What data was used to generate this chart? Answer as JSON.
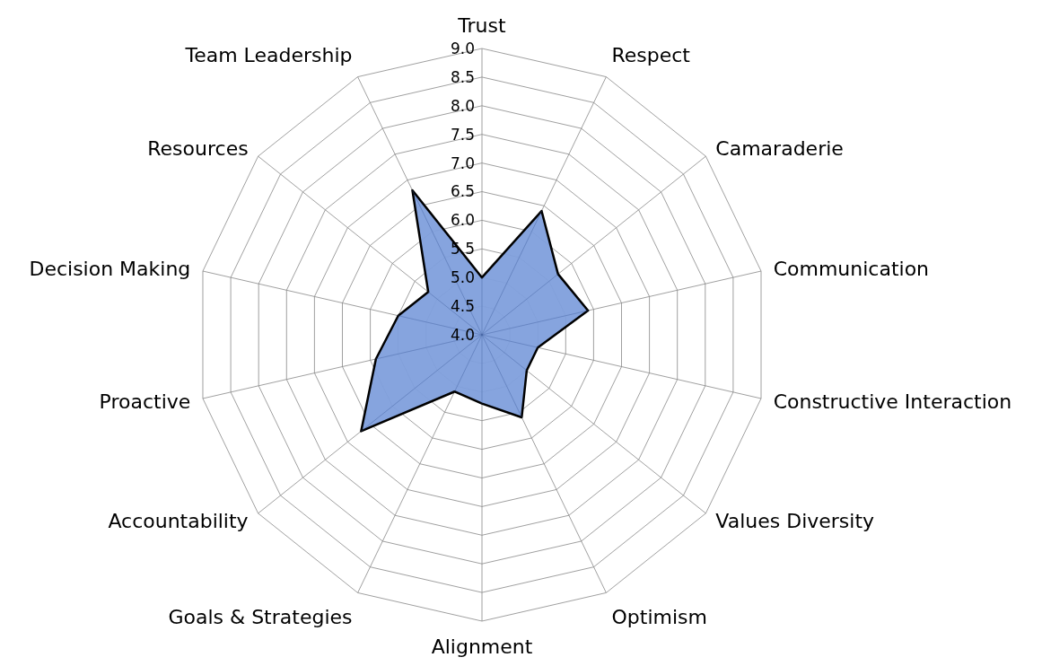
{
  "chart_data": {
    "type": "radar",
    "categories": [
      "Trust",
      "Respect",
      "Camaraderie",
      "Communication",
      "Constructive Interaction",
      "Values Diversity",
      "Optimism",
      "Alignment",
      "Goals & Strategies",
      "Accountability",
      "Proactive",
      "Decision Making",
      "Resources",
      "Team Leadership"
    ],
    "series": [
      {
        "color": "#7f9fdc",
        "values": [
          5.0,
          6.4,
          5.7,
          5.9,
          5.0,
          5.0,
          5.6,
          5.2,
          5.1,
          6.7,
          5.9,
          5.5,
          5.2,
          6.8
        ]
      }
    ],
    "ylim": [
      4.0,
      9.0
    ],
    "yticks": [
      {
        "value": 4,
        "label": "4.0"
      },
      {
        "value": 4.5,
        "label": "4.5"
      },
      {
        "value": 5,
        "label": "5.0"
      },
      {
        "value": 5.5,
        "label": "5.5"
      },
      {
        "value": 6,
        "label": "6.0"
      },
      {
        "value": 6.5,
        "label": "6.5"
      },
      {
        "value": 7,
        "label": "7.0"
      },
      {
        "value": 7.5,
        "label": "7.5"
      },
      {
        "value": 8,
        "label": "8.0"
      },
      {
        "value": 8.5,
        "label": "8.5"
      },
      {
        "value": 9,
        "label": "9.0"
      }
    ],
    "grid": true
  }
}
